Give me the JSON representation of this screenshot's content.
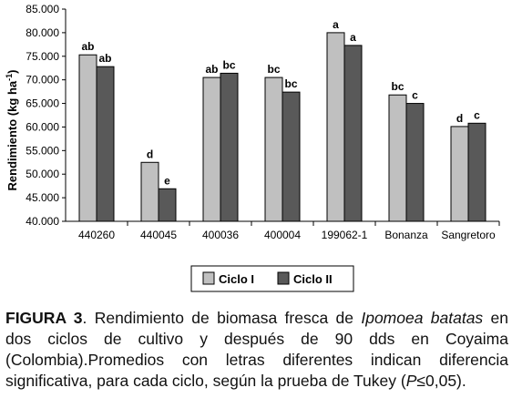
{
  "chart_data": {
    "type": "bar",
    "ylabel": "Rendimiento (kg ha-1)",
    "ylim": [
      40000,
      85000
    ],
    "yticks": [
      "40.000",
      "45.000",
      "50.000",
      "55.000",
      "60.000",
      "65.000",
      "70.000",
      "75.000",
      "80.000",
      "85.000"
    ],
    "grid": false,
    "legend_position": "bottom",
    "categories": [
      "440260",
      "440045",
      "400036",
      "400004",
      "199062-1",
      "Bonanza",
      "Sangretoro"
    ],
    "series": [
      {
        "name": "Ciclo I",
        "color": "#c0c0c0",
        "values": [
          75300,
          52500,
          70500,
          70500,
          80000,
          66800,
          60100
        ],
        "letters": [
          "ab",
          "d",
          "ab",
          "bc",
          "a",
          "bc",
          "d"
        ]
      },
      {
        "name": "Ciclo II",
        "color": "#595959",
        "values": [
          72800,
          46900,
          71400,
          67400,
          77300,
          65000,
          60800
        ],
        "letters": [
          "ab",
          "e",
          "bc",
          "bc",
          "a",
          "c",
          "c"
        ]
      }
    ]
  },
  "caption": {
    "label": "FIGURA 3",
    "text_before": ". Rendimiento de biomasa fresca de ",
    "species": "Ipomoea batatas",
    "text_after": " en dos ciclos de cultivo y después de 90 dds en Coyaima (Colombia).Promedios con letras diferentes indican diferencia significativa, para cada ciclo, según la prueba de Tukey (",
    "p_symbol": "P",
    "p_rest": "≤0,05)."
  }
}
